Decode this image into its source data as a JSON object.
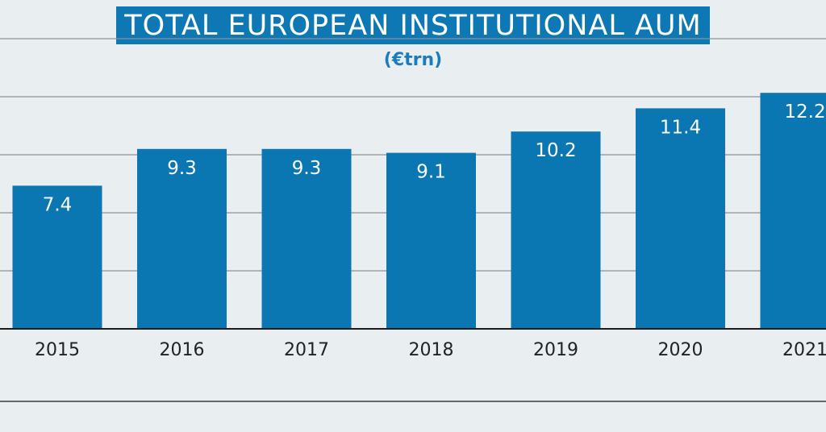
{
  "chart_data": {
    "type": "bar",
    "title": "TOTAL EUROPEAN INSTITUTIONAL AUM",
    "subtitle": "(€trn)",
    "categories": [
      "2015",
      "2016",
      "2017",
      "2018",
      "2019",
      "2020",
      "2021"
    ],
    "values": [
      7.4,
      9.3,
      9.3,
      9.1,
      10.2,
      11.4,
      12.2
    ],
    "value_labels": [
      "7.4",
      "9.3",
      "9.3",
      "9.1",
      "10.2",
      "11.4",
      "12.2"
    ],
    "ylim": [
      0,
      15
    ],
    "grid": true,
    "bar_color": "#0a77b3",
    "title_bg_color": "#0e78b5",
    "subtitle_color": "#1a7cbc",
    "background_color": "#e9eef1"
  }
}
